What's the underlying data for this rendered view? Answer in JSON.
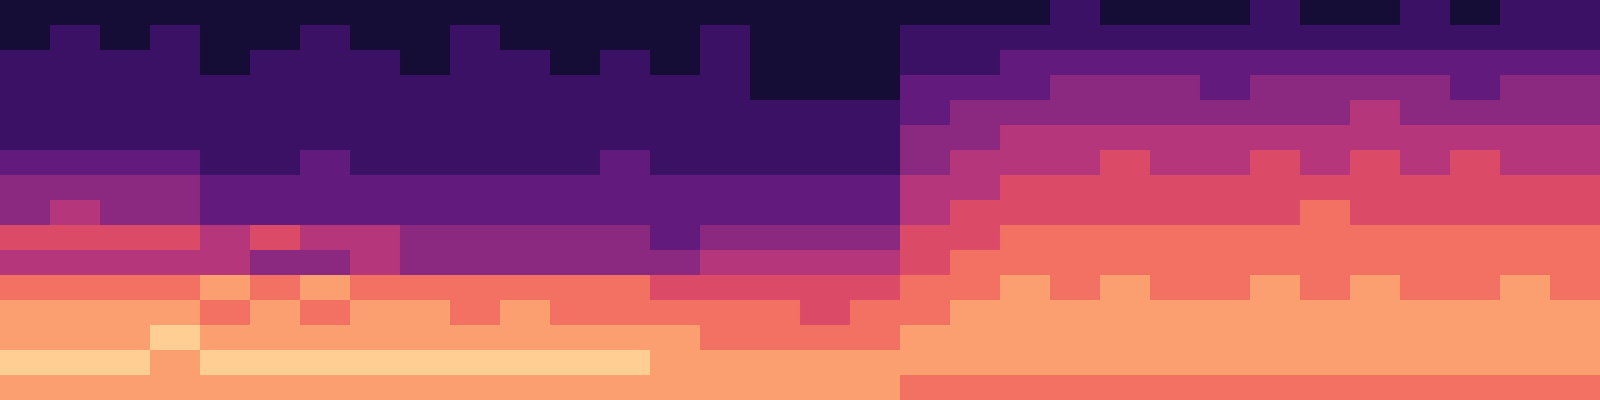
{
  "chart_data": {
    "type": "heatmap",
    "tick_labels": false,
    "xlim": [
      0,
      32
    ],
    "ylim": [
      0,
      16
    ],
    "zlim": [
      0,
      10
    ],
    "cells": [
      [
        1,
        1,
        1,
        1,
        1,
        1,
        1,
        1,
        1,
        1,
        1,
        1,
        1,
        1,
        1,
        1,
        1,
        1,
        1,
        1,
        1,
        2,
        1,
        1,
        1,
        2,
        1,
        1,
        2,
        1,
        2,
        2
      ],
      [
        1,
        2,
        1,
        2,
        1,
        1,
        2,
        1,
        1,
        2,
        1,
        1,
        1,
        1,
        2,
        1,
        1,
        1,
        2,
        2,
        2,
        2,
        2,
        2,
        2,
        2,
        2,
        2,
        2,
        2,
        2,
        2
      ],
      [
        2,
        2,
        2,
        2,
        1,
        2,
        2,
        2,
        1,
        2,
        2,
        1,
        2,
        1,
        2,
        1,
        1,
        1,
        2,
        2,
        3,
        3,
        3,
        3,
        3,
        3,
        3,
        3,
        3,
        3,
        3,
        3
      ],
      [
        2,
        2,
        2,
        2,
        2,
        2,
        2,
        2,
        2,
        2,
        2,
        2,
        2,
        2,
        2,
        1,
        1,
        1,
        3,
        3,
        3,
        4,
        4,
        4,
        3,
        4,
        4,
        4,
        4,
        3,
        4,
        4
      ],
      [
        2,
        2,
        2,
        2,
        2,
        2,
        2,
        2,
        2,
        2,
        2,
        2,
        2,
        2,
        2,
        2,
        2,
        2,
        3,
        4,
        4,
        4,
        4,
        4,
        4,
        4,
        4,
        5,
        4,
        4,
        4,
        4
      ],
      [
        2,
        2,
        2,
        2,
        2,
        2,
        2,
        2,
        2,
        2,
        2,
        2,
        2,
        2,
        2,
        2,
        2,
        2,
        4,
        4,
        5,
        5,
        5,
        5,
        5,
        5,
        5,
        5,
        5,
        5,
        5,
        5
      ],
      [
        3,
        3,
        3,
        3,
        2,
        2,
        3,
        2,
        2,
        2,
        2,
        2,
        3,
        2,
        2,
        2,
        2,
        2,
        4,
        5,
        5,
        5,
        6,
        5,
        5,
        6,
        5,
        6,
        5,
        6,
        5,
        5
      ],
      [
        4,
        4,
        4,
        4,
        3,
        3,
        3,
        3,
        3,
        3,
        3,
        3,
        3,
        3,
        3,
        3,
        3,
        3,
        5,
        5,
        6,
        6,
        6,
        6,
        6,
        6,
        6,
        6,
        6,
        6,
        6,
        6
      ],
      [
        4,
        5,
        4,
        4,
        3,
        3,
        3,
        3,
        3,
        3,
        3,
        3,
        3,
        3,
        3,
        3,
        3,
        3,
        5,
        6,
        6,
        6,
        6,
        6,
        6,
        6,
        7,
        6,
        6,
        6,
        6,
        6
      ],
      [
        6,
        6,
        6,
        6,
        5,
        6,
        5,
        5,
        4,
        4,
        4,
        4,
        4,
        3,
        4,
        4,
        4,
        4,
        6,
        6,
        7,
        7,
        7,
        7,
        7,
        7,
        7,
        7,
        7,
        7,
        7,
        7
      ],
      [
        5,
        5,
        5,
        5,
        5,
        4,
        4,
        5,
        4,
        4,
        4,
        4,
        4,
        4,
        5,
        5,
        5,
        5,
        6,
        7,
        7,
        7,
        7,
        7,
        7,
        7,
        7,
        7,
        7,
        7,
        7,
        7
      ],
      [
        7,
        7,
        7,
        7,
        8,
        7,
        8,
        7,
        7,
        7,
        7,
        7,
        7,
        6,
        6,
        6,
        6,
        6,
        7,
        7,
        8,
        7,
        8,
        7,
        7,
        8,
        7,
        8,
        7,
        7,
        8,
        7
      ],
      [
        8,
        8,
        8,
        8,
        7,
        8,
        7,
        8,
        8,
        7,
        8,
        7,
        7,
        7,
        7,
        7,
        6,
        7,
        7,
        8,
        8,
        8,
        8,
        8,
        8,
        8,
        8,
        8,
        8,
        8,
        8,
        8
      ],
      [
        8,
        8,
        8,
        9,
        8,
        8,
        8,
        8,
        8,
        8,
        8,
        8,
        8,
        8,
        7,
        7,
        7,
        7,
        8,
        8,
        8,
        8,
        8,
        8,
        8,
        8,
        8,
        8,
        8,
        8,
        8,
        8
      ],
      [
        9,
        9,
        9,
        8,
        9,
        9,
        9,
        9,
        9,
        9,
        9,
        9,
        9,
        8,
        8,
        8,
        8,
        8,
        8,
        8,
        8,
        8,
        8,
        8,
        8,
        8,
        8,
        8,
        8,
        8,
        8,
        8
      ],
      [
        8,
        8,
        8,
        8,
        8,
        8,
        8,
        8,
        8,
        8,
        8,
        8,
        8,
        8,
        8,
        8,
        8,
        8,
        7,
        7,
        7,
        7,
        7,
        7,
        7,
        7,
        7,
        7,
        7,
        7,
        7,
        7
      ]
    ]
  }
}
